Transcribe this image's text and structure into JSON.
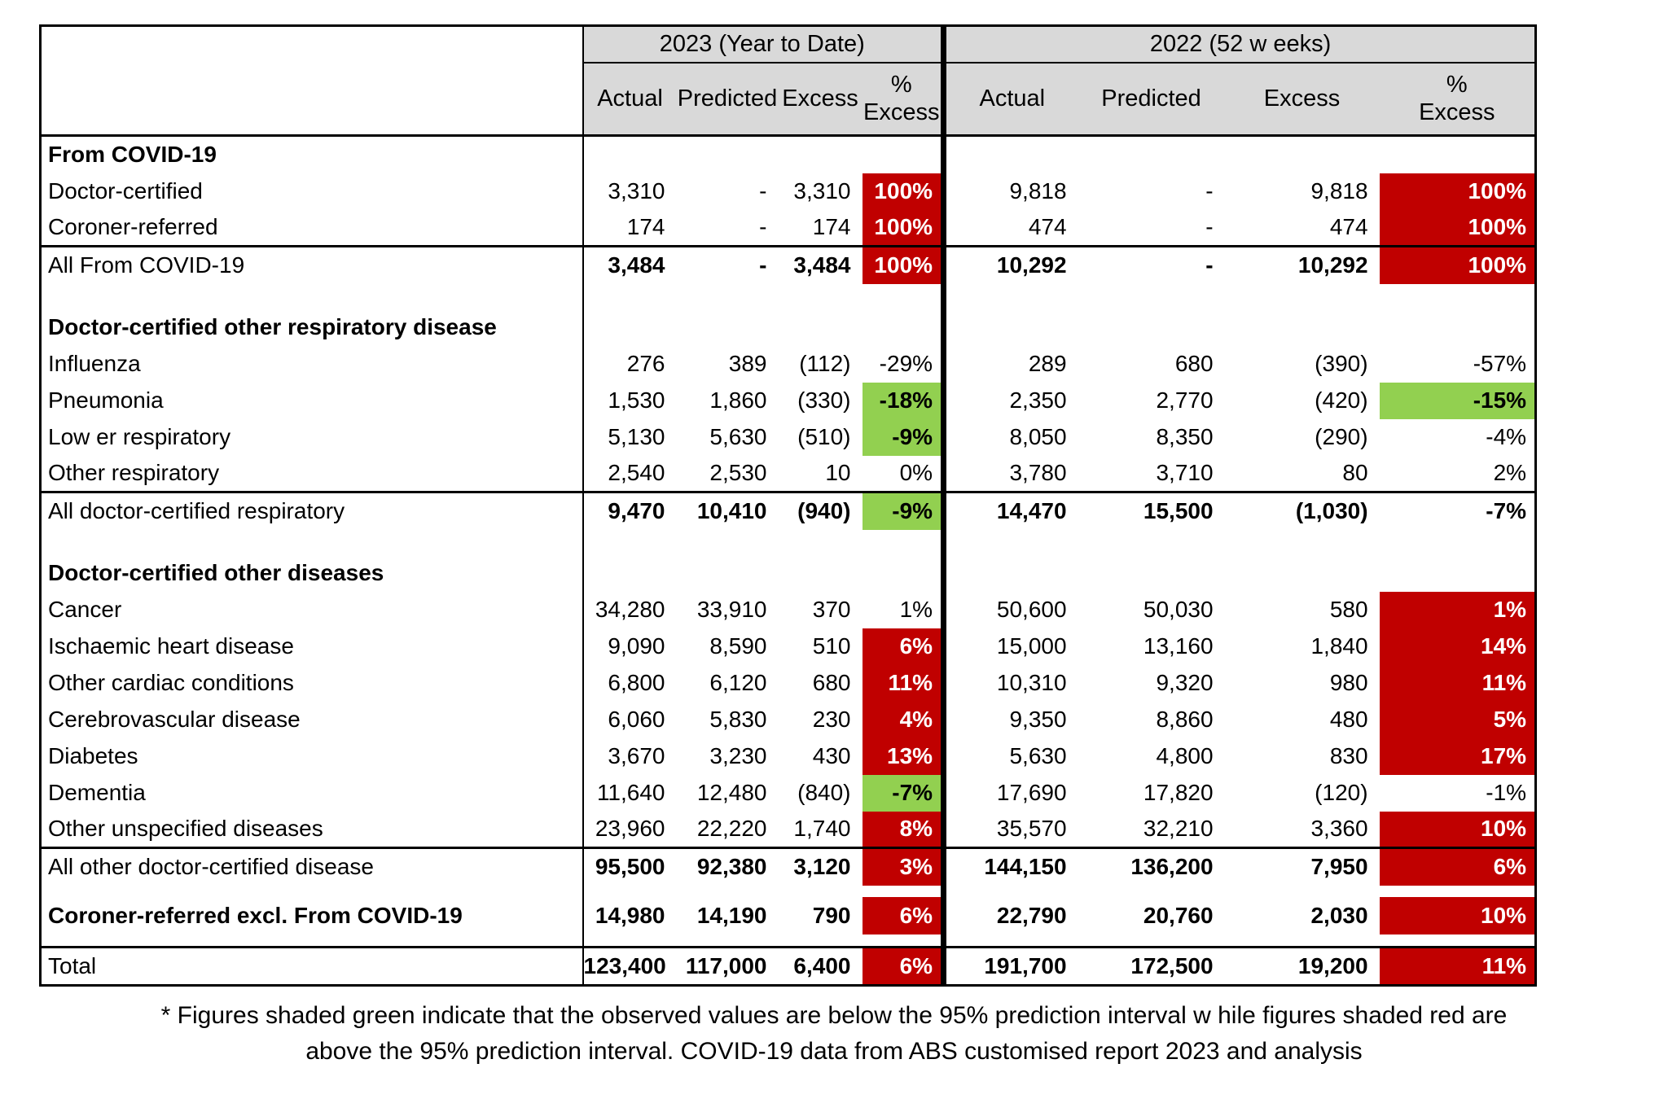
{
  "colors": {
    "red": "#c00000",
    "green": "#92d050",
    "header_bg": "#d9d9d9",
    "border": "#000000"
  },
  "header": {
    "year_groups": [
      {
        "label": "2023 (Year to Date)"
      },
      {
        "label": "2022 (52 w eeks)"
      }
    ],
    "columns": [
      "Actual",
      "Predicted",
      "Excess"
    ],
    "pct": {
      "line1": "%",
      "line2": "Excess"
    }
  },
  "rows": [
    {
      "type": "section",
      "label": "From COVID-19"
    },
    {
      "type": "data",
      "label": "Doctor-certified",
      "cells": [
        "3,310",
        "-",
        "3,310",
        {
          "v": "100%",
          "bg": "red"
        },
        "9,818",
        "-",
        "9,818",
        {
          "v": "100%",
          "bg": "red"
        }
      ]
    },
    {
      "type": "data",
      "label": "Coroner-referred",
      "cells": [
        "174",
        "-",
        "174",
        {
          "v": "100%",
          "bg": "red"
        },
        "474",
        "-",
        "474",
        {
          "v": "100%",
          "bg": "red"
        }
      ]
    },
    {
      "type": "subtotal",
      "label": "All From COVID-19",
      "top_border": true,
      "cells": [
        "3,484",
        "-",
        "3,484",
        {
          "v": "100%",
          "bg": "red"
        },
        "10,292",
        "-",
        "10,292",
        {
          "v": "100%",
          "bg": "red"
        }
      ]
    },
    {
      "type": "spacer",
      "h": 30
    },
    {
      "type": "section",
      "label": "Doctor-certified other respiratory disease"
    },
    {
      "type": "data",
      "label": "Influenza",
      "cells": [
        "276",
        "389",
        "(112)",
        "-29%",
        "289",
        "680",
        "(390)",
        "-57%"
      ]
    },
    {
      "type": "data",
      "label": "Pneumonia",
      "cells": [
        "1,530",
        "1,860",
        "(330)",
        {
          "v": "-18%",
          "bg": "green"
        },
        "2,350",
        "2,770",
        "(420)",
        {
          "v": "-15%",
          "bg": "green"
        }
      ]
    },
    {
      "type": "data",
      "label": "Low er respiratory",
      "cells": [
        "5,130",
        "5,630",
        "(510)",
        {
          "v": "-9%",
          "bg": "green"
        },
        "8,050",
        "8,350",
        "(290)",
        "-4%"
      ]
    },
    {
      "type": "data",
      "label": "Other respiratory",
      "cells": [
        "2,540",
        "2,530",
        "10",
        "0%",
        "3,780",
        "3,710",
        "80",
        "2%"
      ]
    },
    {
      "type": "subtotal",
      "label": "All doctor-certified respiratory",
      "top_border": true,
      "cells": [
        "9,470",
        "10,410",
        "(940)",
        {
          "v": "-9%",
          "bg": "green"
        },
        "14,470",
        "15,500",
        "(1,030)",
        "-7%"
      ]
    },
    {
      "type": "spacer",
      "h": 30
    },
    {
      "type": "section",
      "label": "Doctor-certified other diseases"
    },
    {
      "type": "data",
      "label": "Cancer",
      "cells": [
        "34,280",
        "33,910",
        "370",
        "1%",
        "50,600",
        "50,030",
        "580",
        {
          "v": "1%",
          "bg": "red"
        }
      ]
    },
    {
      "type": "data",
      "label": "Ischaemic heart disease",
      "cells": [
        "9,090",
        "8,590",
        "510",
        {
          "v": "6%",
          "bg": "red"
        },
        "15,000",
        "13,160",
        "1,840",
        {
          "v": "14%",
          "bg": "red"
        }
      ]
    },
    {
      "type": "data",
      "label": "Other cardiac conditions",
      "cells": [
        "6,800",
        "6,120",
        "680",
        {
          "v": "11%",
          "bg": "red"
        },
        "10,310",
        "9,320",
        "980",
        {
          "v": "11%",
          "bg": "red"
        }
      ]
    },
    {
      "type": "data",
      "label": "Cerebrovascular disease",
      "cells": [
        "6,060",
        "5,830",
        "230",
        {
          "v": "4%",
          "bg": "red"
        },
        "9,350",
        "8,860",
        "480",
        {
          "v": "5%",
          "bg": "red"
        }
      ]
    },
    {
      "type": "data",
      "label": "Diabetes",
      "cells": [
        "3,670",
        "3,230",
        "430",
        {
          "v": "13%",
          "bg": "red"
        },
        "5,630",
        "4,800",
        "830",
        {
          "v": "17%",
          "bg": "red"
        }
      ]
    },
    {
      "type": "data",
      "label": "Dementia",
      "cells": [
        "11,640",
        "12,480",
        "(840)",
        {
          "v": "-7%",
          "bg": "green"
        },
        "17,690",
        "17,820",
        "(120)",
        "-1%"
      ]
    },
    {
      "type": "data",
      "label": "Other unspecified diseases",
      "cells": [
        "23,960",
        "22,220",
        "1,740",
        {
          "v": "8%",
          "bg": "red"
        },
        "35,570",
        "32,210",
        "3,360",
        {
          "v": "10%",
          "bg": "red"
        }
      ]
    },
    {
      "type": "subtotal",
      "label": "All other doctor-certified disease",
      "top_border": true,
      "cells": [
        "95,500",
        "92,380",
        "3,120",
        {
          "v": "3%",
          "bg": "red"
        },
        "144,150",
        "136,200",
        "7,950",
        {
          "v": "6%",
          "bg": "red"
        }
      ]
    },
    {
      "type": "spacer",
      "h": 14
    },
    {
      "type": "subtotal",
      "label": "Coroner-referred excl. From COVID-19",
      "label_bold": true,
      "cells": [
        "14,980",
        "14,190",
        "790",
        {
          "v": "6%",
          "bg": "red"
        },
        "22,790",
        "20,760",
        "2,030",
        {
          "v": "10%",
          "bg": "red"
        }
      ]
    },
    {
      "type": "spacer",
      "h": 16
    },
    {
      "type": "total",
      "label": "Total",
      "top_border": true,
      "cells": [
        "123,400",
        "117,000",
        "6,400",
        {
          "v": "6%",
          "bg": "red"
        },
        "191,700",
        "172,500",
        "19,200",
        {
          "v": "11%",
          "bg": "red"
        }
      ]
    }
  ],
  "footnote": {
    "line1": "* Figures shaded green indicate that the observed values are below the 95% prediction interval w hile figures shaded red are",
    "line2": "above the 95% prediction interval.  COVID-19 data from ABS customised report 2023 and analysis"
  }
}
